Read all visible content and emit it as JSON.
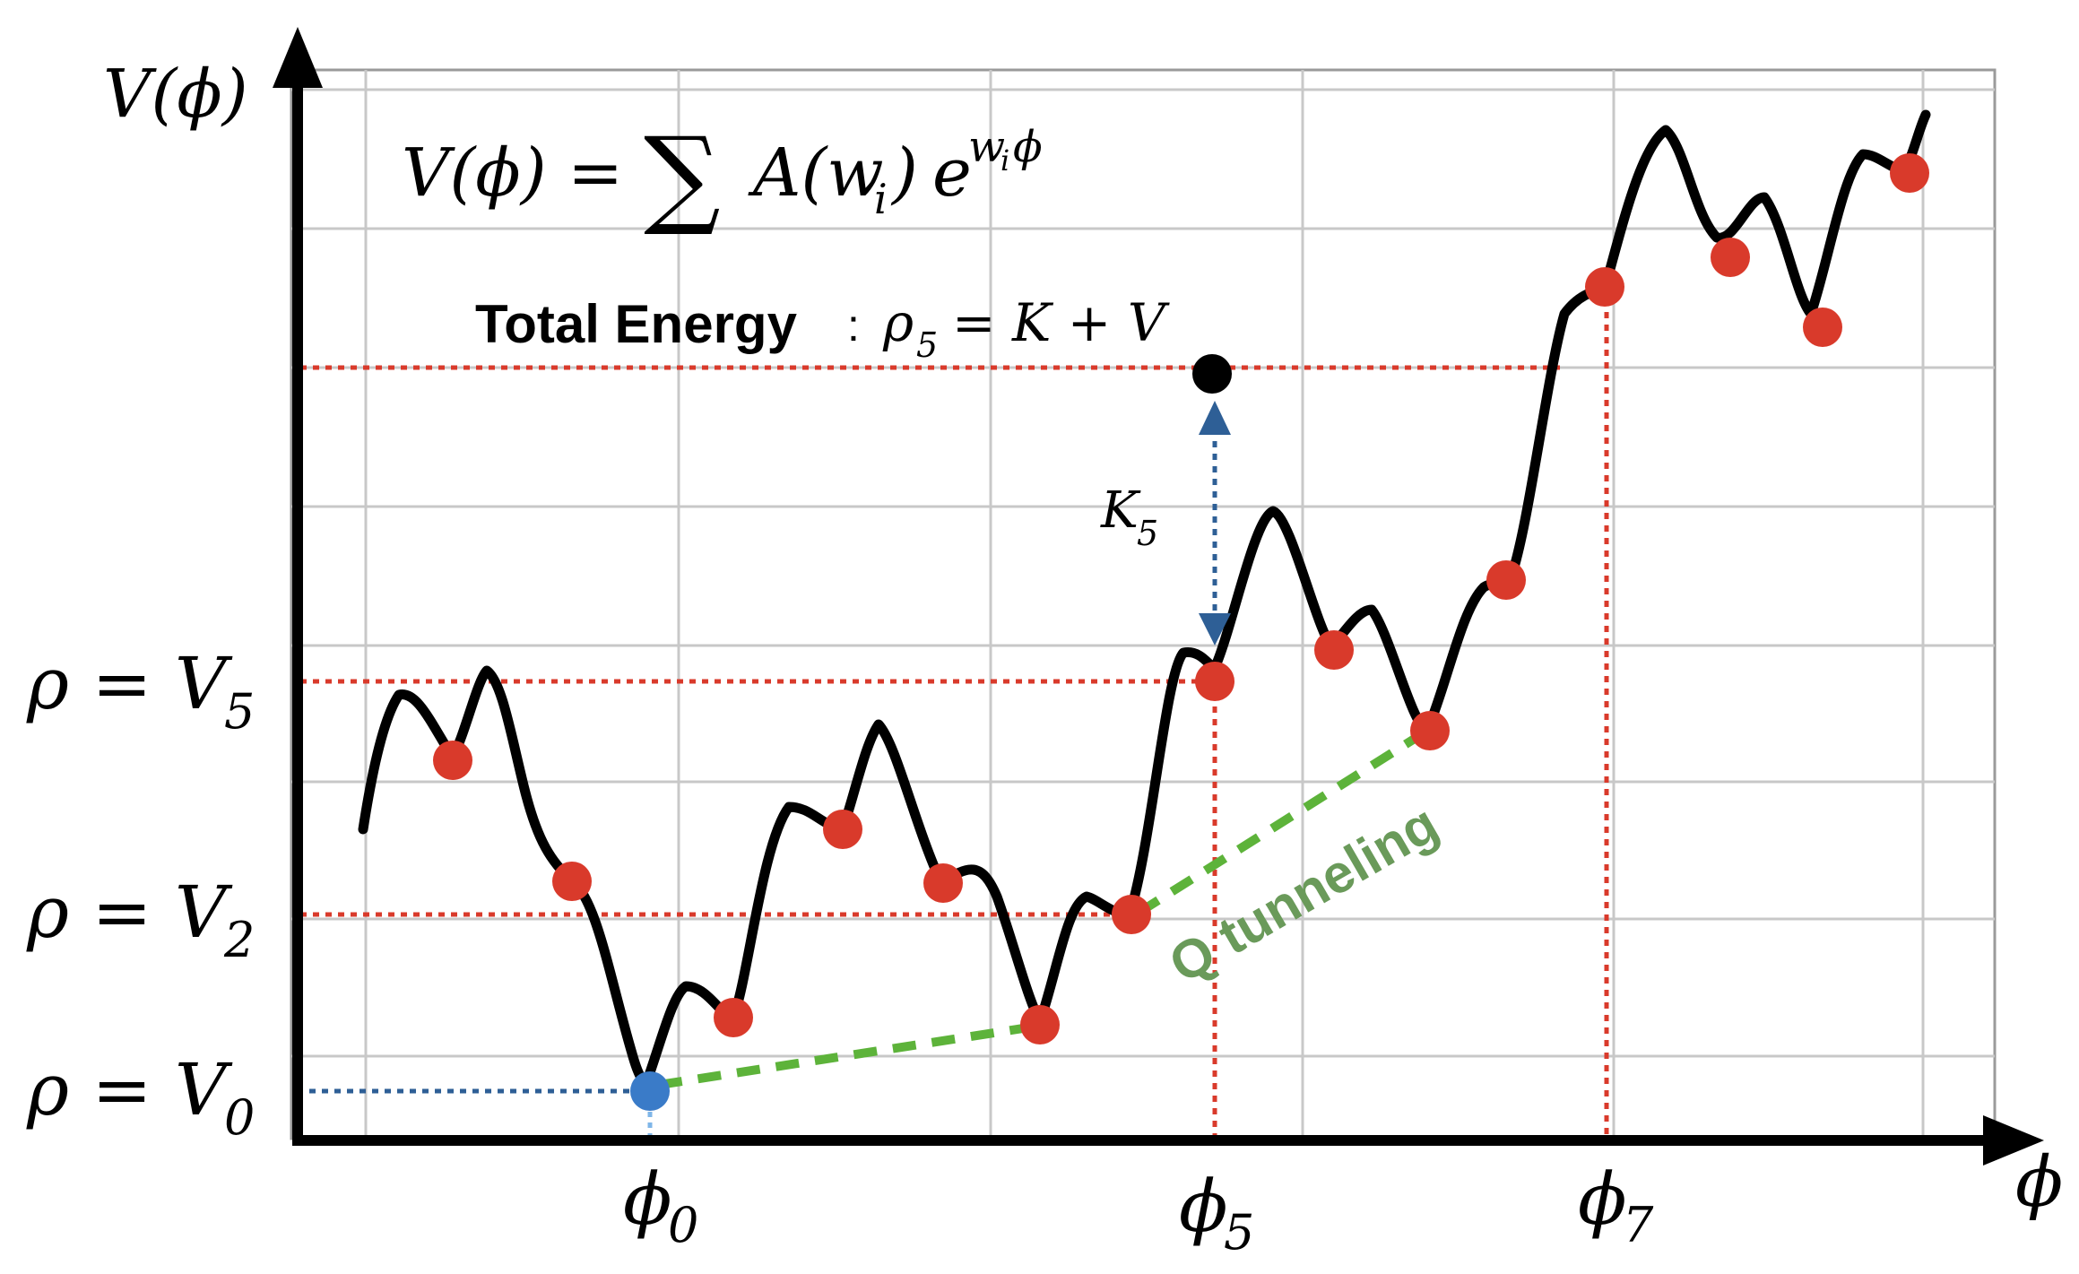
{
  "labels": {
    "y_axis": "V(ϕ)",
    "x_axis": "ϕ",
    "formula_lhs": "V(ϕ) =",
    "formula_sum": "∑",
    "formula_term": "A(w",
    "formula_sub_i": "i",
    "formula_close": ")",
    "formula_e": "e",
    "formula_exp_w": "w",
    "formula_exp_i": "i",
    "formula_exp_phi": "ϕ",
    "total_energy_bold": "Total Energy",
    "total_energy_colon": ":",
    "total_energy_rho": "ρ",
    "total_energy_sub": "5",
    "total_energy_rest": "= K + V",
    "k5": "K",
    "k5_sub": "5",
    "tunneling": "Q tunneling",
    "rho_eq": "ρ = V",
    "v5_sub": "5",
    "v2_sub": "2",
    "v0_sub": "0",
    "phi": "ϕ",
    "phi0_sub": "0",
    "phi5_sub": "5",
    "phi7_sub": "7"
  },
  "colors": {
    "curve": "#000000",
    "minima": "#d93a2b",
    "ground": "#3a7bc8",
    "energy_point": "#000000",
    "red_dotted": "#d93a2b",
    "blue_dotted": "#2e5f96",
    "tunneling": "#5db33a",
    "tunneling_text": "#6a9a5a",
    "grid": "#c8c8c8"
  }
}
